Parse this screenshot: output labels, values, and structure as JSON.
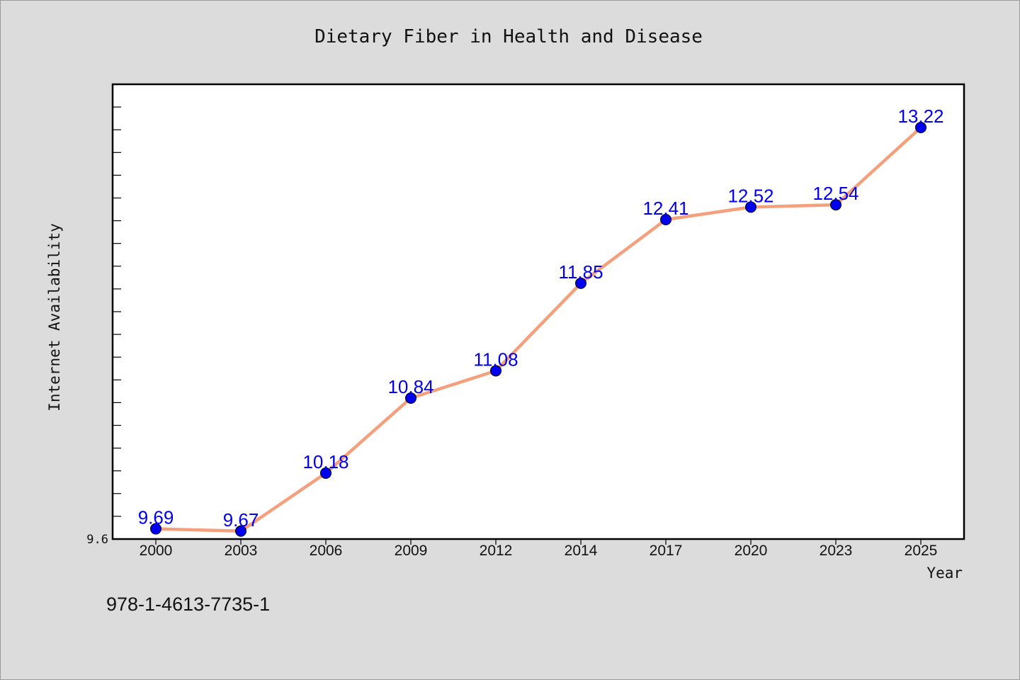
{
  "chart_data": {
    "type": "line",
    "title": "Dietary Fiber in Health and Disease",
    "xlabel": "Year",
    "ylabel": "Internet Availability",
    "categories": [
      "2000",
      "2003",
      "2006",
      "2009",
      "2012",
      "2014",
      "2017",
      "2020",
      "2023",
      "2025"
    ],
    "series": [
      {
        "values": [
          9.69,
          9.67,
          10.18,
          10.84,
          11.08,
          11.85,
          12.41,
          12.52,
          12.54,
          13.22
        ]
      }
    ],
    "y_tick_labels": [
      "9.6"
    ],
    "ylim": [
      9.6,
      13.6
    ],
    "grid": false,
    "legend": "none",
    "data_labels": true,
    "colors": {
      "line": "#f4a07c",
      "marker": "#0000ee",
      "label": "#0000ee",
      "plot_bg": "#ffffff",
      "page_bg": "#dcdcdc"
    }
  },
  "footnote": "978-1-4613-7735-1"
}
